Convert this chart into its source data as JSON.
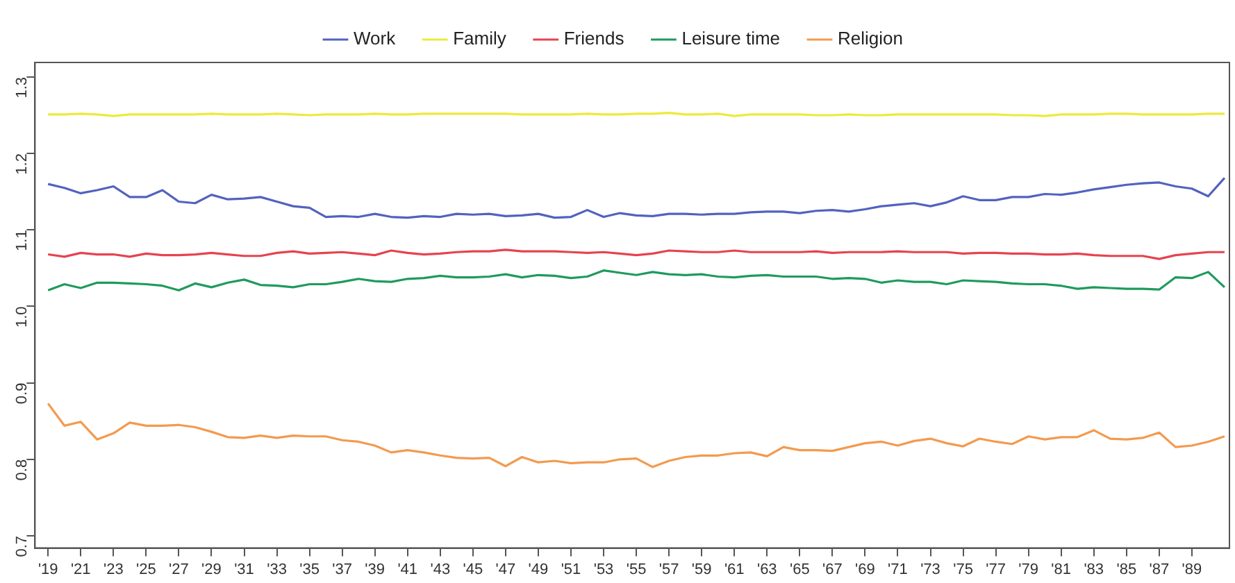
{
  "chart_data": {
    "type": "line",
    "legend": "top",
    "grid": false,
    "marker": "none",
    "line_style": "solid",
    "x": [
      1919,
      1920,
      1921,
      1922,
      1923,
      1924,
      1925,
      1926,
      1927,
      1928,
      1929,
      1930,
      1931,
      1932,
      1933,
      1934,
      1935,
      1936,
      1937,
      1938,
      1939,
      1940,
      1941,
      1942,
      1943,
      1944,
      1945,
      1946,
      1947,
      1948,
      1949,
      1950,
      1951,
      1952,
      1953,
      1954,
      1955,
      1956,
      1957,
      1958,
      1959,
      1960,
      1961,
      1962,
      1963,
      1964,
      1965,
      1966,
      1967,
      1968,
      1969,
      1970,
      1971,
      1972,
      1973,
      1974,
      1975,
      1976,
      1977,
      1978,
      1979,
      1980,
      1981,
      1982,
      1983,
      1984,
      1985,
      1986,
      1987,
      1988,
      1989,
      1990,
      1991
    ],
    "xlim": [
      1918.2,
      1991.3
    ],
    "xticks": [
      {
        "value": 1919,
        "label": "'19"
      },
      {
        "value": 1921,
        "label": "'21"
      },
      {
        "value": 1923,
        "label": "'23"
      },
      {
        "value": 1925,
        "label": "'25"
      },
      {
        "value": 1927,
        "label": "'27"
      },
      {
        "value": 1929,
        "label": "'29"
      },
      {
        "value": 1931,
        "label": "'31"
      },
      {
        "value": 1933,
        "label": "'33"
      },
      {
        "value": 1935,
        "label": "'35"
      },
      {
        "value": 1937,
        "label": "'37"
      },
      {
        "value": 1939,
        "label": "'39"
      },
      {
        "value": 1941,
        "label": "'41"
      },
      {
        "value": 1943,
        "label": "'43"
      },
      {
        "value": 1945,
        "label": "'45"
      },
      {
        "value": 1947,
        "label": "'47"
      },
      {
        "value": 1949,
        "label": "'49"
      },
      {
        "value": 1951,
        "label": "'51"
      },
      {
        "value": 1953,
        "label": "'53"
      },
      {
        "value": 1955,
        "label": "'55"
      },
      {
        "value": 1957,
        "label": "'57"
      },
      {
        "value": 1959,
        "label": "'59"
      },
      {
        "value": 1961,
        "label": "'61"
      },
      {
        "value": 1963,
        "label": "'63"
      },
      {
        "value": 1965,
        "label": "'65"
      },
      {
        "value": 1967,
        "label": "'67"
      },
      {
        "value": 1969,
        "label": "'69"
      },
      {
        "value": 1971,
        "label": "'71"
      },
      {
        "value": 1973,
        "label": "'73"
      },
      {
        "value": 1975,
        "label": "'75"
      },
      {
        "value": 1977,
        "label": "'77"
      },
      {
        "value": 1979,
        "label": "'79"
      },
      {
        "value": 1981,
        "label": "'81"
      },
      {
        "value": 1983,
        "label": "'83"
      },
      {
        "value": 1985,
        "label": "'85"
      },
      {
        "value": 1987,
        "label": "'87"
      },
      {
        "value": 1989,
        "label": "'89"
      }
    ],
    "ylim": [
      0.684,
      1.319
    ],
    "yticks": [
      0.7,
      0.8,
      0.9,
      {
        "value": 1,
        "label": "1.0"
      },
      1.1,
      1.2,
      1.3
    ],
    "series": [
      {
        "name": "Work",
        "color": "#5262bf",
        "values": [
          1.16,
          1.155,
          1.148,
          1.152,
          1.157,
          1.143,
          1.143,
          1.152,
          1.137,
          1.135,
          1.146,
          1.14,
          1.141,
          1.143,
          1.137,
          1.131,
          1.129,
          1.117,
          1.118,
          1.117,
          1.121,
          1.117,
          1.116,
          1.118,
          1.117,
          1.121,
          1.12,
          1.121,
          1.118,
          1.119,
          1.121,
          1.116,
          1.117,
          1.126,
          1.117,
          1.122,
          1.119,
          1.118,
          1.121,
          1.121,
          1.12,
          1.121,
          1.121,
          1.123,
          1.124,
          1.124,
          1.122,
          1.125,
          1.126,
          1.124,
          1.127,
          1.131,
          1.133,
          1.135,
          1.131,
          1.136,
          1.144,
          1.139,
          1.139,
          1.143,
          1.143,
          1.147,
          1.146,
          1.149,
          1.153,
          1.156,
          1.159,
          1.161,
          1.162,
          1.157,
          1.154,
          1.144,
          1.168
        ]
      },
      {
        "name": "Family",
        "color": "#ecea3c",
        "values": [
          1.251,
          1.251,
          1.252,
          1.251,
          1.249,
          1.251,
          1.251,
          1.251,
          1.251,
          1.251,
          1.252,
          1.251,
          1.251,
          1.251,
          1.252,
          1.251,
          1.25,
          1.251,
          1.251,
          1.251,
          1.252,
          1.251,
          1.251,
          1.252,
          1.252,
          1.252,
          1.252,
          1.252,
          1.252,
          1.251,
          1.251,
          1.251,
          1.251,
          1.252,
          1.251,
          1.251,
          1.252,
          1.252,
          1.253,
          1.251,
          1.251,
          1.252,
          1.249,
          1.251,
          1.251,
          1.251,
          1.251,
          1.25,
          1.25,
          1.251,
          1.25,
          1.25,
          1.251,
          1.251,
          1.251,
          1.251,
          1.251,
          1.251,
          1.251,
          1.25,
          1.25,
          1.249,
          1.251,
          1.251,
          1.251,
          1.252,
          1.252,
          1.251,
          1.251,
          1.251,
          1.251,
          1.252,
          1.252
        ]
      },
      {
        "name": "Friends",
        "color": "#e6434f",
        "values": [
          1.068,
          1.065,
          1.07,
          1.068,
          1.068,
          1.065,
          1.069,
          1.067,
          1.067,
          1.068,
          1.07,
          1.068,
          1.066,
          1.066,
          1.07,
          1.072,
          1.069,
          1.07,
          1.071,
          1.069,
          1.067,
          1.073,
          1.07,
          1.068,
          1.069,
          1.071,
          1.072,
          1.072,
          1.074,
          1.072,
          1.072,
          1.072,
          1.071,
          1.07,
          1.071,
          1.069,
          1.067,
          1.069,
          1.073,
          1.072,
          1.071,
          1.071,
          1.073,
          1.071,
          1.071,
          1.071,
          1.071,
          1.072,
          1.07,
          1.071,
          1.071,
          1.071,
          1.072,
          1.071,
          1.071,
          1.071,
          1.069,
          1.07,
          1.07,
          1.069,
          1.069,
          1.068,
          1.068,
          1.069,
          1.067,
          1.066,
          1.066,
          1.066,
          1.062,
          1.067,
          1.069,
          1.071,
          1.071
        ]
      },
      {
        "name": "Leisure time",
        "color": "#1f9a5e",
        "values": [
          1.021,
          1.029,
          1.024,
          1.031,
          1.031,
          1.03,
          1.029,
          1.027,
          1.021,
          1.03,
          1.025,
          1.031,
          1.035,
          1.028,
          1.027,
          1.025,
          1.029,
          1.029,
          1.032,
          1.036,
          1.033,
          1.032,
          1.036,
          1.037,
          1.04,
          1.038,
          1.038,
          1.039,
          1.042,
          1.038,
          1.041,
          1.04,
          1.037,
          1.039,
          1.047,
          1.044,
          1.041,
          1.045,
          1.042,
          1.041,
          1.042,
          1.039,
          1.038,
          1.04,
          1.041,
          1.039,
          1.039,
          1.039,
          1.036,
          1.037,
          1.036,
          1.031,
          1.034,
          1.032,
          1.032,
          1.029,
          1.034,
          1.033,
          1.032,
          1.03,
          1.029,
          1.029,
          1.027,
          1.023,
          1.025,
          1.024,
          1.023,
          1.023,
          1.022,
          1.038,
          1.037,
          1.045,
          1.025
        ]
      },
      {
        "name": "Religion",
        "color": "#f39a4e",
        "values": [
          0.873,
          0.844,
          0.849,
          0.826,
          0.834,
          0.848,
          0.844,
          0.844,
          0.845,
          0.842,
          0.836,
          0.829,
          0.828,
          0.831,
          0.828,
          0.831,
          0.83,
          0.83,
          0.825,
          0.823,
          0.818,
          0.809,
          0.812,
          0.809,
          0.805,
          0.802,
          0.801,
          0.802,
          0.791,
          0.803,
          0.796,
          0.798,
          0.795,
          0.796,
          0.796,
          0.8,
          0.801,
          0.79,
          0.798,
          0.803,
          0.805,
          0.805,
          0.808,
          0.809,
          0.804,
          0.816,
          0.812,
          0.812,
          0.811,
          0.816,
          0.821,
          0.823,
          0.818,
          0.824,
          0.827,
          0.821,
          0.817,
          0.827,
          0.823,
          0.82,
          0.83,
          0.826,
          0.829,
          0.829,
          0.838,
          0.827,
          0.826,
          0.828,
          0.835,
          0.816,
          0.818,
          0.823,
          0.83
        ]
      }
    ]
  }
}
